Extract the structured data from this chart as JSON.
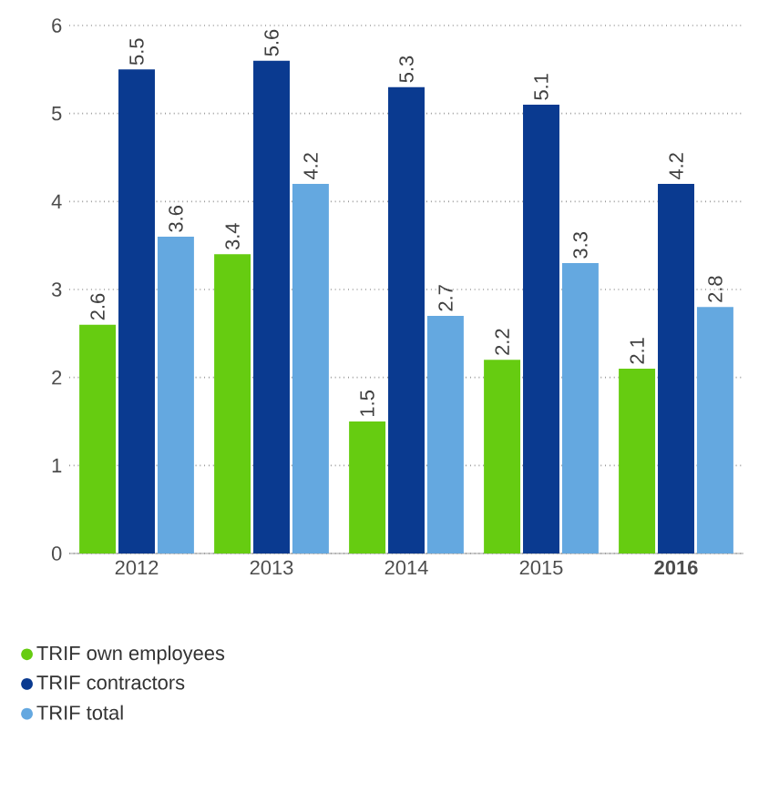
{
  "chart_data": {
    "type": "bar",
    "categories": [
      "2012",
      "2013",
      "2014",
      "2015",
      "**2016**"
    ],
    "series": [
      {
        "name": "TRIF own employees",
        "color": "#66cc11",
        "values": [
          2.6,
          3.4,
          1.5,
          2.2,
          2.1
        ]
      },
      {
        "name": "TRIF contractors",
        "color": "#0a3a90",
        "values": [
          5.5,
          5.6,
          5.3,
          5.1,
          4.2
        ]
      },
      {
        "name": "TRIF total",
        "color": "#64a8e0",
        "values": [
          3.6,
          4.2,
          2.7,
          3.3,
          2.8
        ]
      }
    ],
    "ylim": [
      0,
      6
    ],
    "yticks": [
      0,
      1,
      2,
      3,
      4,
      5,
      6
    ],
    "grid": "y",
    "legend": "bottom",
    "data_labels": true
  }
}
